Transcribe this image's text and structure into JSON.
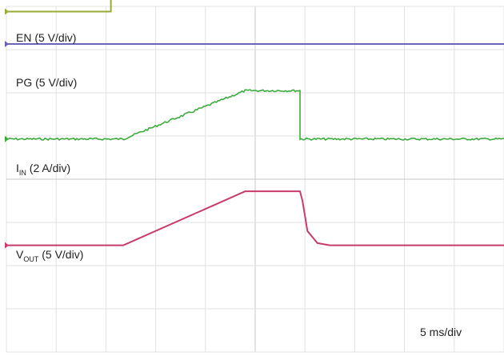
{
  "chart_data": {
    "type": "line",
    "title": "",
    "grid": true,
    "grid_divisions": {
      "x": 10,
      "y": 8
    },
    "x_unit_label": "5 ms/div",
    "x_range_div": [
      0,
      10
    ],
    "y_range_div": [
      0,
      8
    ],
    "series": [
      {
        "key": "en",
        "label_main": "EN",
        "label_sub": "",
        "label_rest": " (5 V/div)",
        "color": "#9aaa36",
        "noise": false,
        "points": [
          [
            0,
            7.88
          ],
          [
            2.1,
            7.88
          ],
          [
            2.1,
            8.57
          ],
          [
            10,
            8.57
          ]
        ]
      },
      {
        "key": "pg",
        "label_main": "PG",
        "label_sub": "",
        "label_rest": " (5 V/div)",
        "color": "#6a63b8",
        "noise": false,
        "points": [
          [
            0,
            7.13
          ],
          [
            10,
            7.13
          ]
        ]
      },
      {
        "key": "iin",
        "label_main": "I",
        "label_sub": "IN",
        "label_rest": " (2 A/div)",
        "color": "#3cab3c",
        "noise": true,
        "points": [
          [
            0,
            4.93
          ],
          [
            2.35,
            4.93
          ],
          [
            4.8,
            6.05
          ],
          [
            5.9,
            6.05
          ],
          [
            5.9,
            4.93
          ],
          [
            10,
            4.93
          ]
        ]
      },
      {
        "key": "vout",
        "label_main": "V",
        "label_sub": "OUT",
        "label_rest": " (5 V/div)",
        "color": "#c83b6a",
        "noise": false,
        "points": [
          [
            0,
            2.47
          ],
          [
            2.35,
            2.47
          ],
          [
            4.8,
            3.72
          ],
          [
            5.9,
            3.72
          ],
          [
            5.95,
            3.5
          ],
          [
            6.05,
            2.8
          ],
          [
            6.25,
            2.52
          ],
          [
            6.5,
            2.47
          ],
          [
            10,
            2.47
          ]
        ]
      }
    ]
  }
}
